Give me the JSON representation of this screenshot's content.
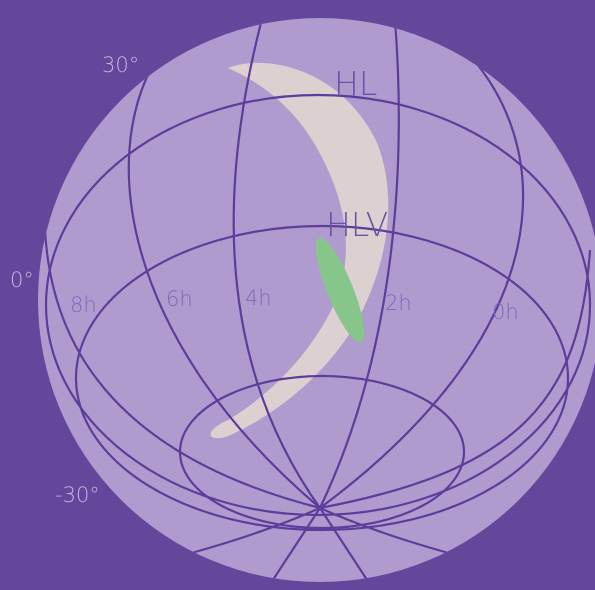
{
  "colors": {
    "background": "#63479b",
    "sphere": "#b09bcf",
    "grid": "#5b3e9a",
    "label": "#c4b5e0",
    "region_label": "#6a52a6",
    "hl_region": "#ddd0d0",
    "hlv_region": "#86c68a"
  },
  "declination_labels": {
    "dec_plus30": "30°",
    "dec_zero": "0°",
    "dec_minus30": "-30°"
  },
  "ra_labels": {
    "ra_8h": "8h",
    "ra_6h": "6h",
    "ra_4h": "4h",
    "ra_2h": "2h",
    "ra_0h": "0h"
  },
  "regions": {
    "hl": {
      "label": "HL"
    },
    "hlv": {
      "label": "HLV"
    }
  }
}
